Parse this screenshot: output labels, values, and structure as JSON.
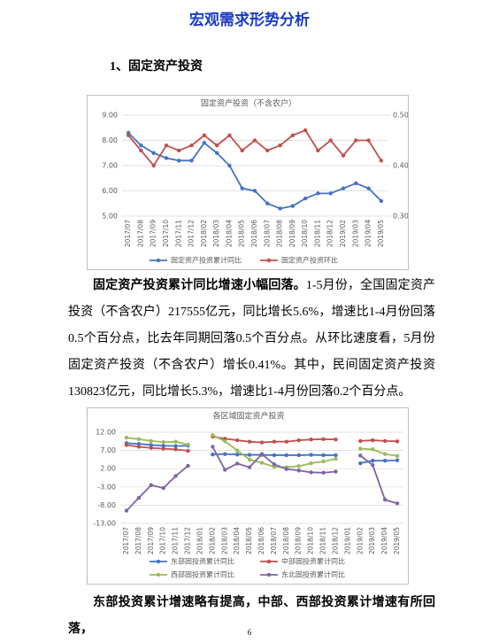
{
  "title": "宏观需求形势分析",
  "heading": "1、固定资产投资",
  "paragraph": {
    "lead": "固定资产投资累计同比增速小幅回落。",
    "body": "1-5月份，全国固定资产投资（不含农户）217555亿元，同比增长5.6%，增速比1-4月份回落0.5个百分点，比去年同期回落0.5个百分点。从环比速度看，5月份固定资产投资（不含农户）增长0.41%。其中，民间固定资产投资130823亿元，同比增长5.3%，增速比1-4月份回落0.2个百分点。"
  },
  "paragraph2": "东部投资累计增速略有提高，中部、西部投资累计增速有所回落，",
  "page_number": "6",
  "chart_data": [
    {
      "type": "line",
      "title": "固定资产投资（不含农户）",
      "categories": [
        "2017/07",
        "2017/08",
        "2017/09",
        "2017/10",
        "2017/11",
        "2017/12",
        "2018/02",
        "2018/03",
        "2018/04",
        "2018/05",
        "2018/06",
        "2018/07",
        "2018/08",
        "2018/09",
        "2018/10",
        "2018/11",
        "2018/12",
        "2019/02",
        "2019/03",
        "2019/04",
        "2019/05"
      ],
      "series": [
        {
          "name": "固定资产投资累计同比",
          "color": "#4472c4",
          "values": [
            8.3,
            7.8,
            7.5,
            7.3,
            7.2,
            7.2,
            7.9,
            7.5,
            7.0,
            6.1,
            6.0,
            5.5,
            5.3,
            5.4,
            5.7,
            5.9,
            5.9,
            6.1,
            6.3,
            6.1,
            5.6
          ]
        },
        {
          "name": "固定资产投资环比",
          "color": "#c0504d",
          "axis": "y2",
          "values": [
            0.46,
            0.43,
            0.4,
            0.44,
            0.43,
            0.44,
            0.46,
            0.44,
            0.46,
            0.43,
            0.45,
            0.43,
            0.44,
            0.46,
            0.47,
            0.43,
            0.45,
            0.42,
            0.45,
            0.45,
            0.41
          ]
        }
      ],
      "ylim": [
        5,
        9
      ],
      "yticks": [
        {
          "value": 5,
          "label": "5.00"
        },
        {
          "value": 6,
          "label": "6.00"
        },
        {
          "value": 7,
          "label": "7.00"
        },
        {
          "value": 8,
          "label": "8.00"
        },
        {
          "value": 9,
          "label": "9.00"
        }
      ],
      "y2lim": [
        0.3,
        0.5
      ],
      "y2ticks": [
        {
          "value": 0.3,
          "label": "0.30"
        },
        {
          "value": 0.4,
          "label": "0.40"
        },
        {
          "value": 0.5,
          "label": "0.50"
        }
      ],
      "grid": true,
      "legend": "bottom"
    },
    {
      "type": "line",
      "title": "各区域固定资产投资",
      "categories": [
        "2017/07",
        "2017/08",
        "2017/09",
        "2017/10",
        "2017/11",
        "2017/12",
        "2018/01",
        "2018/02",
        "2018/03",
        "2018/04",
        "2018/05",
        "2018/06",
        "2018/07",
        "2018/08",
        "2018/09",
        "2018/10",
        "2018/11",
        "2018/12",
        "2019/01",
        "2019/02",
        "2019/03",
        "2019/04",
        "2019/05"
      ],
      "series": [
        {
          "name": "东部固投资累计同比",
          "color": "#4472c4",
          "values": [
            9.0,
            8.8,
            8.5,
            8.3,
            8.2,
            8.3,
            null,
            5.9,
            6.0,
            5.9,
            5.8,
            5.8,
            5.7,
            5.7,
            5.7,
            5.8,
            5.7,
            5.7,
            null,
            3.5,
            4.2,
            4.2,
            4.3
          ]
        },
        {
          "name": "中部固投资累计同比",
          "color": "#c0504d",
          "values": [
            8.5,
            8.0,
            7.7,
            7.5,
            7.3,
            6.9,
            null,
            10.8,
            10.2,
            9.8,
            9.4,
            9.2,
            9.4,
            9.4,
            9.8,
            10.0,
            10.1,
            10.0,
            null,
            9.6,
            9.8,
            9.6,
            9.5
          ]
        },
        {
          "name": "西部固投资累计同比",
          "color": "#9bbb59",
          "values": [
            10.5,
            10.1,
            9.6,
            9.3,
            9.4,
            8.6,
            null,
            11.2,
            9.5,
            7.0,
            4.5,
            3.6,
            2.5,
            2.4,
            2.7,
            3.5,
            4.0,
            4.7,
            null,
            7.5,
            7.3,
            6.0,
            5.5
          ]
        },
        {
          "name": "东北固投资累计同比",
          "color": "#8064a2",
          "values": [
            -9.5,
            -6.0,
            -2.5,
            -3.3,
            0.0,
            2.8,
            null,
            8.0,
            1.7,
            3.4,
            2.4,
            6.0,
            3.2,
            1.9,
            1.5,
            1.0,
            0.9,
            1.2,
            null,
            5.6,
            3.0,
            -6.5,
            -7.5
          ]
        }
      ],
      "ylim": [
        -13,
        12
      ],
      "yticks": [
        {
          "value": -13,
          "label": "-13.00"
        },
        {
          "value": -8,
          "label": "-8.00"
        },
        {
          "value": -3,
          "label": "-3.00"
        },
        {
          "value": 2,
          "label": "2.00"
        },
        {
          "value": 7,
          "label": "7.00"
        },
        {
          "value": 12,
          "label": "12.00"
        }
      ],
      "grid": true,
      "legend": "bottom"
    }
  ]
}
